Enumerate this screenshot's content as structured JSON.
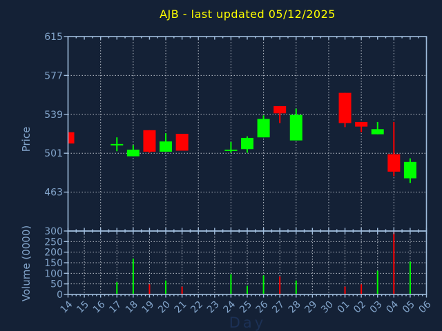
{
  "title": "AJB - last updated 05/12/2025",
  "colors": {
    "background": "#142136",
    "spine": "#9fbcdc",
    "grid": "#b9bfc9",
    "tick_label": "#82a4ca",
    "title": "#ffff00",
    "xlabel_text": "#1c3156",
    "up": "#00ff00",
    "down": "#ff0000"
  },
  "x_axis": {
    "label": "Day",
    "tick_labels": [
      "14",
      "15",
      "16",
      "17",
      "18",
      "19",
      "20",
      "21",
      "22",
      "23",
      "24",
      "25",
      "26",
      "27",
      "28",
      "29",
      "30",
      "01",
      "02",
      "03",
      "04",
      "05",
      "06"
    ]
  },
  "price_axis": {
    "label": "Price",
    "ticks": [
      615,
      577,
      539,
      501,
      463
    ]
  },
  "volume_axis": {
    "label": "Volume (0000)",
    "ticks": [
      300,
      250,
      200,
      150,
      100,
      50,
      0
    ]
  },
  "chart_data": [
    {
      "type": "candlestick",
      "title": "AJB - last updated 05/12/2025",
      "xlabel": "Day",
      "ylabel": "Price",
      "ylim": [
        425,
        615
      ],
      "yticks": [
        463,
        501,
        539,
        577,
        615
      ],
      "grid": "on",
      "categories": [
        "14",
        "15",
        "16",
        "17",
        "18",
        "19",
        "20",
        "21",
        "22",
        "23",
        "24",
        "25",
        "26",
        "27",
        "28",
        "29",
        "30",
        "01",
        "02",
        "03",
        "04",
        "05",
        "06"
      ],
      "candles": [
        {
          "day": "14",
          "open": 521.5,
          "high": 521.5,
          "low": 510.5,
          "close": 510.5
        },
        {
          "day": "17",
          "open": 509.5,
          "high": 516.5,
          "low": 503.0,
          "close": 510.0
        },
        {
          "day": "18",
          "open": 498.0,
          "high": 509.0,
          "low": 498.0,
          "close": 504.5
        },
        {
          "day": "19",
          "open": 523.5,
          "high": 523.5,
          "low": 501.5,
          "close": 502.5
        },
        {
          "day": "20",
          "open": 502.5,
          "high": 520.5,
          "low": 502.5,
          "close": 512.5
        },
        {
          "day": "21",
          "open": 520.0,
          "high": 520.0,
          "low": 503.5,
          "close": 503.5
        },
        {
          "day": "24",
          "open": 503.5,
          "high": 512.0,
          "low": 501.5,
          "close": 504.5
        },
        {
          "day": "25",
          "open": 505.0,
          "high": 517.5,
          "low": 501.5,
          "close": 516.0
        },
        {
          "day": "26",
          "open": 516.5,
          "high": 538.0,
          "low": 516.5,
          "close": 534.5
        },
        {
          "day": "27",
          "open": 547.0,
          "high": 547.0,
          "low": 530.5,
          "close": 540.0
        },
        {
          "day": "28",
          "open": 513.5,
          "high": 544.5,
          "low": 513.5,
          "close": 538.5
        },
        {
          "day": "01",
          "open": 560.0,
          "high": 560.0,
          "low": 526.5,
          "close": 530.5
        },
        {
          "day": "02",
          "open": 531.5,
          "high": 531.5,
          "low": 521.5,
          "close": 527.0
        },
        {
          "day": "03",
          "open": 519.5,
          "high": 531.5,
          "low": 519.5,
          "close": 524.5
        },
        {
          "day": "04",
          "open": 500.0,
          "high": 531.5,
          "low": 478.5,
          "close": 483.0
        },
        {
          "day": "05",
          "open": 476.5,
          "high": 496.0,
          "low": 472.0,
          "close": 492.5
        }
      ]
    },
    {
      "type": "bar",
      "ylabel": "Volume (0000)",
      "ylim": [
        0,
        300
      ],
      "yticks": [
        0,
        50,
        100,
        150,
        200,
        250,
        300
      ],
      "grid": "on",
      "categories": [
        "14",
        "15",
        "16",
        "17",
        "18",
        "19",
        "20",
        "21",
        "22",
        "23",
        "24",
        "25",
        "26",
        "27",
        "28",
        "29",
        "30",
        "01",
        "02",
        "03",
        "04",
        "05",
        "06"
      ],
      "values": [
        null,
        null,
        null,
        58,
        170,
        48,
        66,
        37,
        null,
        null,
        96,
        41,
        90,
        85,
        66,
        null,
        null,
        37,
        48,
        112,
        295,
        155,
        null
      ]
    }
  ]
}
